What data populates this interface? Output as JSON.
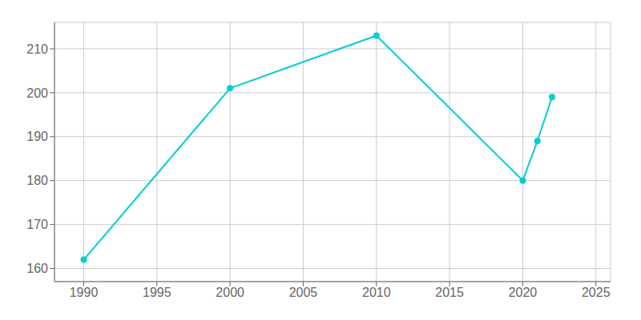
{
  "chart_data": {
    "type": "line",
    "x": [
      1990,
      2000,
      2010,
      2020,
      2021,
      2022
    ],
    "values": [
      162,
      201,
      213,
      180,
      189,
      199
    ],
    "color": "#00CED1",
    "marker": "circle",
    "xlim": [
      1988,
      2026
    ],
    "ylim": [
      157,
      216
    ],
    "xticks": [
      1990,
      1995,
      2000,
      2005,
      2010,
      2015,
      2020,
      2025
    ],
    "yticks": [
      160,
      170,
      180,
      190,
      200,
      210
    ],
    "grid": true
  }
}
